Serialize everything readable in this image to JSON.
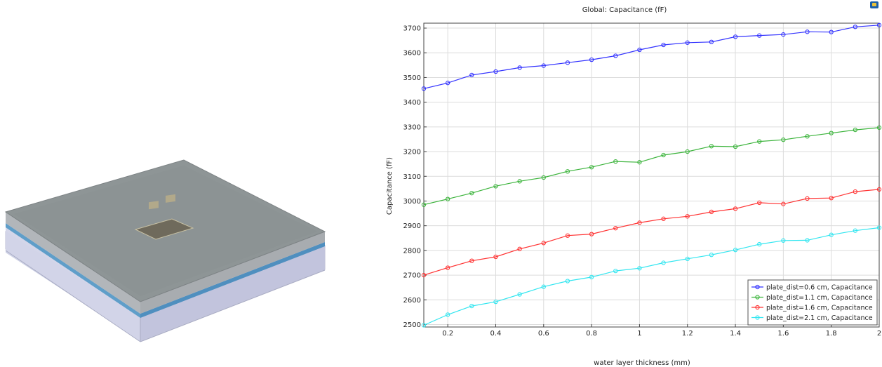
{
  "model_view": {
    "description_icon": "3d-geometry-model",
    "colors": {
      "box_top": "#8e9596",
      "box_side": "#c8cbe3",
      "water_band": "#5f9ec9",
      "cover": "#a2a8aa"
    }
  },
  "toolbar": {
    "icon": "image-export-icon"
  },
  "chart_data": {
    "type": "line",
    "title": "Global: Capacitance (fF)",
    "xlabel": "water layer thickness (mm)",
    "ylabel": "Capacitance (fF)",
    "xlim": [
      0.1,
      2.0
    ],
    "ylim": [
      2490,
      3720
    ],
    "xticks": [
      "0.2",
      "0.4",
      "0.6",
      "0.8",
      "1",
      "1.2",
      "1.4",
      "1.6",
      "1.8",
      "2"
    ],
    "yticks": [
      "2500",
      "2600",
      "2700",
      "2800",
      "2900",
      "3000",
      "3100",
      "3200",
      "3300",
      "3400",
      "3500",
      "3600",
      "3700"
    ],
    "grid": true,
    "legend_position": "bottom-right",
    "x": [
      0.1,
      0.2,
      0.3,
      0.4,
      0.5,
      0.6,
      0.7,
      0.8,
      0.9,
      1.0,
      1.1,
      1.2,
      1.3,
      1.4,
      1.5,
      1.6,
      1.7,
      1.8,
      1.9,
      2.0
    ],
    "series": [
      {
        "name": "plate_dist=0.6 cm, Capacitance",
        "color": "#3232ff",
        "values": [
          3455,
          3478,
          3510,
          3524,
          3540,
          3548,
          3560,
          3572,
          3588,
          3612,
          3632,
          3641,
          3644,
          3665,
          3670,
          3674,
          3685,
          3684,
          3705,
          3712
        ]
      },
      {
        "name": "plate_dist=1.1 cm, Capacitance",
        "color": "#3cb43c",
        "values": [
          2985,
          3008,
          3032,
          3060,
          3080,
          3095,
          3120,
          3137,
          3160,
          3157,
          3186,
          3200,
          3222,
          3220,
          3241,
          3248,
          3262,
          3275,
          3288,
          3297
        ]
      },
      {
        "name": "plate_dist=1.6 cm, Capacitance",
        "color": "#ff3232",
        "values": [
          2700,
          2730,
          2758,
          2774,
          2806,
          2830,
          2860,
          2866,
          2890,
          2912,
          2928,
          2938,
          2956,
          2969,
          2993,
          2988,
          3010,
          3012,
          3038,
          3047
        ]
      },
      {
        "name": "plate_dist=2.1 cm, Capacitance",
        "color": "#32e6f0",
        "values": [
          2497,
          2540,
          2575,
          2592,
          2622,
          2653,
          2676,
          2692,
          2717,
          2728,
          2750,
          2766,
          2782,
          2802,
          2825,
          2840,
          2841,
          2863,
          2880,
          2892
        ]
      }
    ]
  }
}
